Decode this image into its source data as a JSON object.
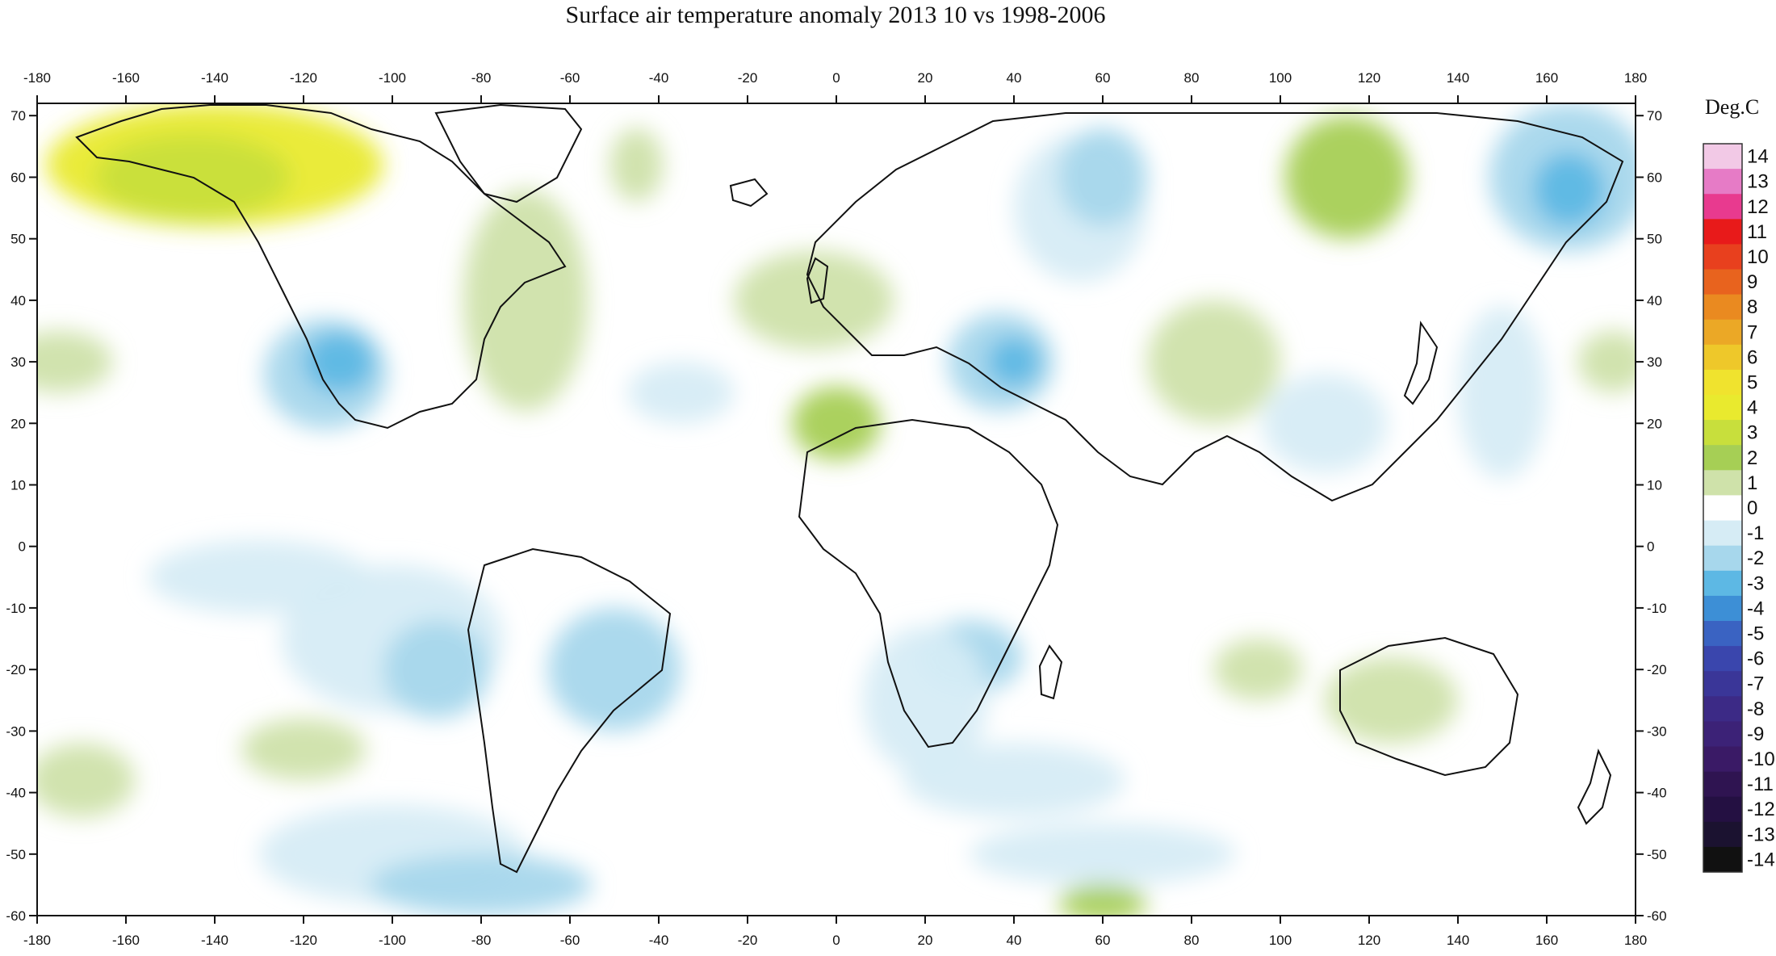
{
  "title": "Surface air temperature anomaly 2013 10 vs 1998-2006",
  "colorbar": {
    "unit": "Deg.C",
    "levels": [
      14,
      13,
      12,
      11,
      10,
      9,
      8,
      7,
      6,
      5,
      4,
      3,
      2,
      1,
      0,
      -1,
      -2,
      -3,
      -4,
      -5,
      -6,
      -7,
      -8,
      -9,
      -10,
      -11,
      -12,
      -13,
      -14
    ],
    "colors": [
      "#f2c9e6",
      "#e67bc6",
      "#e83a8f",
      "#e81a1a",
      "#e8401e",
      "#e8631e",
      "#ea8a20",
      "#eba826",
      "#eec82a",
      "#f0e32e",
      "#e9ea2e",
      "#c8df3c",
      "#a6cf55",
      "#cfe2aa",
      "#ffffff",
      "#d6ecf5",
      "#a7d7ec",
      "#5db8e4",
      "#3d8fd6",
      "#3a63c2",
      "#3a46ad",
      "#3a3698",
      "#3c2a86",
      "#3c2277",
      "#3a1a66",
      "#2f1451",
      "#241042",
      "#1b1230",
      "#111111"
    ]
  },
  "axes": {
    "lon_ticks": [
      -180,
      -160,
      -140,
      -120,
      -100,
      -80,
      -60,
      -40,
      -20,
      0,
      20,
      40,
      60,
      80,
      100,
      120,
      140,
      160,
      180
    ],
    "lat_ticks": [
      70,
      60,
      50,
      40,
      30,
      20,
      10,
      0,
      -10,
      -20,
      -30,
      -40,
      -50,
      -60
    ],
    "lon_range": [
      -180,
      180
    ],
    "lat_range": [
      -60,
      72
    ]
  },
  "anomaly_regions": [
    {
      "lon": -140,
      "lat": 62,
      "rx": 38,
      "ry": 10,
      "level": 4
    },
    {
      "lon": -145,
      "lat": 60,
      "rx": 22,
      "ry": 7,
      "level": 3
    },
    {
      "lon": -115,
      "lat": 28,
      "rx": 14,
      "ry": 9,
      "level": -2
    },
    {
      "lon": -112,
      "lat": 30,
      "rx": 8,
      "ry": 5,
      "level": -3
    },
    {
      "lon": -70,
      "lat": 40,
      "rx": 14,
      "ry": 18,
      "level": 1
    },
    {
      "lon": -45,
      "lat": 62,
      "rx": 6,
      "ry": 6,
      "level": 1
    },
    {
      "lon": -175,
      "lat": 30,
      "rx": 12,
      "ry": 5,
      "level": 1
    },
    {
      "lon": -35,
      "lat": 25,
      "rx": 12,
      "ry": 5,
      "level": -1
    },
    {
      "lon": -130,
      "lat": -5,
      "rx": 25,
      "ry": 6,
      "level": -1
    },
    {
      "lon": -100,
      "lat": -15,
      "rx": 25,
      "ry": 12,
      "level": -1
    },
    {
      "lon": -90,
      "lat": -20,
      "rx": 12,
      "ry": 8,
      "level": -2
    },
    {
      "lon": -50,
      "lat": -20,
      "rx": 15,
      "ry": 10,
      "level": -2
    },
    {
      "lon": -170,
      "lat": -38,
      "rx": 12,
      "ry": 6,
      "level": 1
    },
    {
      "lon": -120,
      "lat": -33,
      "rx": 14,
      "ry": 5,
      "level": 1
    },
    {
      "lon": -100,
      "lat": -50,
      "rx": 30,
      "ry": 8,
      "level": -1
    },
    {
      "lon": -80,
      "lat": -55,
      "rx": 25,
      "ry": 5,
      "level": -2
    },
    {
      "lon": -5,
      "lat": 40,
      "rx": 18,
      "ry": 8,
      "level": 1
    },
    {
      "lon": 0,
      "lat": 20,
      "rx": 10,
      "ry": 6,
      "level": 2
    },
    {
      "lon": 37,
      "lat": 30,
      "rx": 12,
      "ry": 8,
      "level": -2
    },
    {
      "lon": 40,
      "lat": 30,
      "rx": 6,
      "ry": 4,
      "level": -3
    },
    {
      "lon": 55,
      "lat": 55,
      "rx": 15,
      "ry": 12,
      "level": -1
    },
    {
      "lon": 60,
      "lat": 60,
      "rx": 10,
      "ry": 8,
      "level": -2
    },
    {
      "lon": 85,
      "lat": 30,
      "rx": 15,
      "ry": 10,
      "level": 1
    },
    {
      "lon": 115,
      "lat": 60,
      "rx": 14,
      "ry": 10,
      "level": 2
    },
    {
      "lon": 165,
      "lat": 60,
      "rx": 18,
      "ry": 12,
      "level": -2
    },
    {
      "lon": 165,
      "lat": 58,
      "rx": 8,
      "ry": 6,
      "level": -3
    },
    {
      "lon": 150,
      "lat": 25,
      "rx": 10,
      "ry": 14,
      "level": -1
    },
    {
      "lon": 175,
      "lat": 30,
      "rx": 8,
      "ry": 5,
      "level": 1
    },
    {
      "lon": 110,
      "lat": 20,
      "rx": 14,
      "ry": 8,
      "level": -1
    },
    {
      "lon": 30,
      "lat": -18,
      "rx": 12,
      "ry": 6,
      "level": -2
    },
    {
      "lon": 20,
      "lat": -25,
      "rx": 14,
      "ry": 12,
      "level": -1
    },
    {
      "lon": 40,
      "lat": -38,
      "rx": 25,
      "ry": 6,
      "level": -1
    },
    {
      "lon": 125,
      "lat": -25,
      "rx": 15,
      "ry": 7,
      "level": 1
    },
    {
      "lon": 95,
      "lat": -20,
      "rx": 10,
      "ry": 5,
      "level": 1
    },
    {
      "lon": 60,
      "lat": -58,
      "rx": 10,
      "ry": 3,
      "level": 2
    },
    {
      "lon": 60,
      "lat": -50,
      "rx": 30,
      "ry": 5,
      "level": -1
    }
  ]
}
